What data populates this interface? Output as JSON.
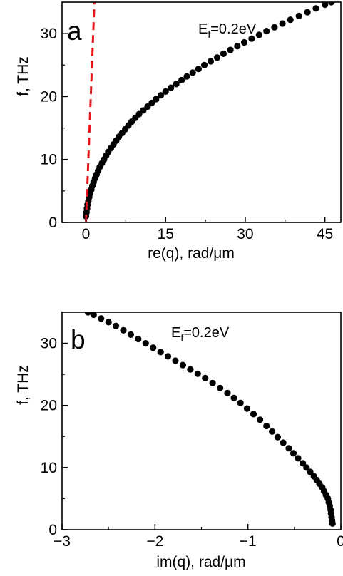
{
  "chart_data": [
    {
      "type": "scatter",
      "panel_label": "a",
      "annotation": {
        "main": "E",
        "sub": "f",
        "rest": "=0.2eV"
      },
      "xlabel": "re(q), rad/μm",
      "ylabel": "f, THz",
      "xlim": [
        -4.5,
        48
      ],
      "ylim": [
        0,
        35
      ],
      "xticks": [
        0,
        15,
        30,
        45
      ],
      "xtick_labels": [
        "0",
        "15",
        "30",
        "45"
      ],
      "yticks": [
        0,
        10,
        20,
        30
      ],
      "ytick_labels": [
        "0",
        "10",
        "20",
        "30"
      ],
      "grid": false,
      "marker_color": "#000000",
      "series": [
        {
          "style": "markers",
          "x": [
            0.0,
            0.1,
            0.2,
            0.3,
            0.45,
            0.6,
            0.8,
            1.0,
            1.2,
            1.45,
            1.7,
            2.0,
            2.3,
            2.6,
            3.0,
            3.4,
            3.8,
            4.2,
            4.7,
            5.2,
            5.7,
            6.2,
            6.8,
            7.4,
            8.0,
            8.6,
            9.3,
            10.0,
            10.8,
            11.6,
            12.4,
            13.2,
            14.1,
            15.0,
            16.0,
            17.0,
            18.0,
            19.0,
            20.1,
            21.2,
            22.3,
            23.5,
            24.7,
            25.9,
            27.2,
            28.5,
            29.8,
            31.2,
            32.6,
            34.0,
            35.5,
            37.0,
            38.5,
            40.1,
            41.7,
            43.3,
            45.0,
            46.2
          ],
          "y": [
            1.0,
            1.6,
            2.2,
            2.8,
            3.4,
            4.0,
            4.6,
            5.2,
            5.8,
            6.4,
            7.0,
            7.6,
            8.2,
            8.8,
            9.4,
            10.0,
            10.6,
            11.2,
            11.8,
            12.4,
            13.0,
            13.6,
            14.2,
            14.8,
            15.4,
            16.0,
            16.6,
            17.2,
            17.8,
            18.4,
            19.0,
            19.6,
            20.2,
            20.8,
            21.4,
            22.0,
            22.6,
            23.2,
            23.8,
            24.4,
            25.0,
            25.6,
            26.2,
            26.8,
            27.4,
            28.0,
            28.6,
            29.2,
            29.8,
            30.4,
            31.0,
            31.6,
            32.2,
            32.8,
            33.4,
            34.0,
            34.6,
            35.0
          ]
        },
        {
          "style": "dashed-line",
          "color": "#e8161b",
          "x": [
            0.0,
            1.6
          ],
          "y": [
            0.0,
            35.0
          ]
        }
      ]
    },
    {
      "type": "scatter",
      "panel_label": "b",
      "annotation": {
        "main": "E",
        "sub": "f",
        "rest": "=0.2eV"
      },
      "xlabel": "im(q), rad/μm",
      "ylabel": "f, THz",
      "xlim": [
        -3.0,
        0.0
      ],
      "ylim": [
        0,
        35
      ],
      "xticks": [
        -3,
        -2,
        -1,
        0
      ],
      "xtick_labels": [
        "−3",
        "−2",
        "−1",
        "0"
      ],
      "yticks": [
        0,
        10,
        20,
        30
      ],
      "ytick_labels": [
        "0",
        "10",
        "20",
        "30"
      ],
      "grid": false,
      "marker_color": "#000000",
      "series": [
        {
          "style": "markers",
          "x": [
            -0.09,
            -0.095,
            -0.1,
            -0.105,
            -0.11,
            -0.12,
            -0.13,
            -0.14,
            -0.16,
            -0.18,
            -0.2,
            -0.23,
            -0.26,
            -0.29,
            -0.33,
            -0.37,
            -0.41,
            -0.46,
            -0.51,
            -0.56,
            -0.62,
            -0.68,
            -0.74,
            -0.8,
            -0.87,
            -0.94,
            -1.01,
            -1.08,
            -1.15,
            -1.22,
            -1.3,
            -1.38,
            -1.46,
            -1.54,
            -1.62,
            -1.7,
            -1.78,
            -1.86,
            -1.94,
            -2.02,
            -2.1,
            -2.18,
            -2.26,
            -2.34,
            -2.42,
            -2.5,
            -2.58,
            -2.66,
            -2.72
          ],
          "y": [
            1.0,
            1.5,
            2.0,
            2.6,
            3.2,
            3.8,
            4.4,
            5.0,
            5.6,
            6.2,
            6.8,
            7.4,
            8.0,
            8.6,
            9.3,
            10.0,
            10.7,
            11.5,
            12.3,
            13.1,
            14.0,
            14.9,
            15.8,
            16.7,
            17.7,
            18.6,
            19.5,
            20.4,
            21.2,
            22.0,
            22.8,
            23.6,
            24.4,
            25.1,
            25.8,
            26.5,
            27.2,
            27.9,
            28.6,
            29.3,
            30.0,
            30.7,
            31.4,
            32.1,
            32.8,
            33.4,
            34.0,
            34.6,
            35.0
          ]
        }
      ]
    }
  ]
}
